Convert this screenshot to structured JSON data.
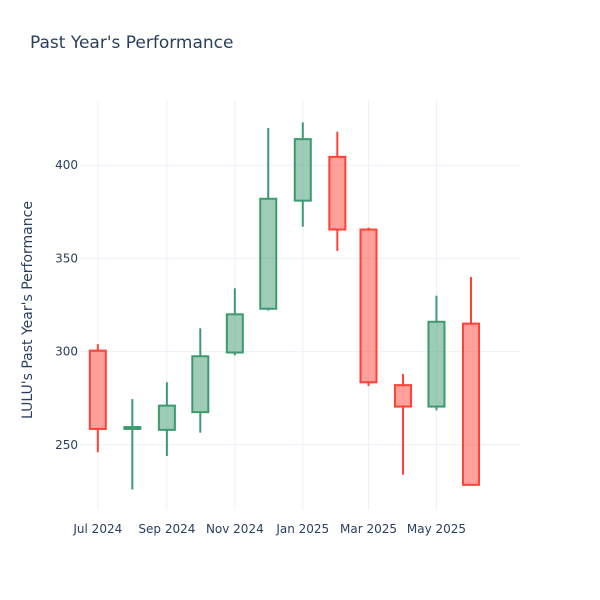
{
  "chart_data": {
    "type": "candlestick",
    "title": "Past Year's Performance",
    "xlabel": "",
    "ylabel": "LULU's Past Year's Performance",
    "ylim": [
      215,
      435
    ],
    "yticks": [
      250,
      300,
      350,
      400
    ],
    "xticks": [
      {
        "label": "Jul 2024",
        "date": "2024-07-01"
      },
      {
        "label": "Sep 2024",
        "date": "2024-09-01"
      },
      {
        "label": "Nov 2024",
        "date": "2024-11-01"
      },
      {
        "label": "Jan 2025",
        "date": "2025-01-01"
      },
      {
        "label": "Mar 2025",
        "date": "2025-03-01"
      },
      {
        "label": "May 2025",
        "date": "2025-05-01"
      }
    ],
    "xrange": [
      "2024-06-15",
      "2025-07-15"
    ],
    "increasing_color": "#3d9970",
    "decreasing_color": "#ff4136",
    "candles": [
      {
        "date": "2024-07-01",
        "open": 300.5,
        "high": 304,
        "low": 246,
        "close": 258.5
      },
      {
        "date": "2024-08-01",
        "open": 258.5,
        "high": 274.5,
        "low": 226,
        "close": 259.5
      },
      {
        "date": "2024-09-01",
        "open": 258,
        "high": 283.5,
        "low": 244,
        "close": 271
      },
      {
        "date": "2024-10-01",
        "open": 267.5,
        "high": 312.5,
        "low": 256.5,
        "close": 297.5
      },
      {
        "date": "2024-11-01",
        "open": 299.5,
        "high": 334,
        "low": 298,
        "close": 320
      },
      {
        "date": "2024-12-01",
        "open": 323,
        "high": 420,
        "low": 322,
        "close": 382
      },
      {
        "date": "2025-01-01",
        "open": 381,
        "high": 423,
        "low": 367,
        "close": 414
      },
      {
        "date": "2025-02-01",
        "open": 404.5,
        "high": 418,
        "low": 354,
        "close": 365.5
      },
      {
        "date": "2025-03-01",
        "open": 365.5,
        "high": 366.5,
        "low": 281.5,
        "close": 283.5
      },
      {
        "date": "2025-04-01",
        "open": 282,
        "high": 288,
        "low": 234,
        "close": 270.5
      },
      {
        "date": "2025-05-01",
        "open": 270.5,
        "high": 330,
        "low": 268.5,
        "close": 316
      },
      {
        "date": "2025-06-01",
        "open": 315,
        "high": 340,
        "low": 228.5,
        "close": 228.5
      }
    ]
  }
}
